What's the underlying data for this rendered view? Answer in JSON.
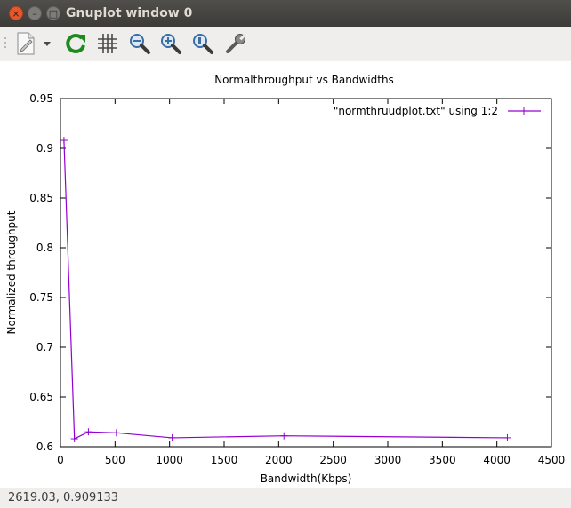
{
  "window": {
    "title": "Gnuplot window 0",
    "close_glyph": "×",
    "minimize_glyph": "–",
    "maximize_glyph": "□"
  },
  "toolbar": {
    "items": [
      {
        "name": "copy-to-clipboard-icon"
      },
      {
        "name": "dropdown-arrow-icon"
      },
      {
        "name": "replot-icon"
      },
      {
        "name": "grid-icon"
      },
      {
        "name": "zoom-out-icon"
      },
      {
        "name": "zoom-in-icon"
      },
      {
        "name": "unzoom-icon"
      },
      {
        "name": "settings-wrench-icon"
      }
    ]
  },
  "colors": {
    "series": "#9400d3",
    "axis": "#000000",
    "close_button": "#e6582c"
  },
  "chart_data": {
    "type": "line",
    "title": "Normalthroughput vs Bandwidths",
    "xlabel": "Bandwidth(Kbps)",
    "ylabel": "Normalized throughput",
    "xlim": [
      0,
      4500
    ],
    "ylim": [
      0.6,
      0.95
    ],
    "xticks": [
      "0",
      "500",
      "1000",
      "1500",
      "2000",
      "2500",
      "3000",
      "3500",
      "4000",
      "4500"
    ],
    "yticks": [
      "0.6",
      "0.65",
      "0.7",
      "0.75",
      "0.8",
      "0.85",
      "0.9",
      "0.95"
    ],
    "legend_position": "top-right",
    "grid": false,
    "series": [
      {
        "name": "\"normthruudplot.txt\" using 1:2",
        "x": [
          32,
          128,
          256,
          512,
          1024,
          2048,
          4096
        ],
        "y": [
          0.908,
          0.608,
          0.615,
          0.614,
          0.609,
          0.611,
          0.609
        ]
      }
    ]
  },
  "status": {
    "text": "2619.03,  0.909133"
  }
}
